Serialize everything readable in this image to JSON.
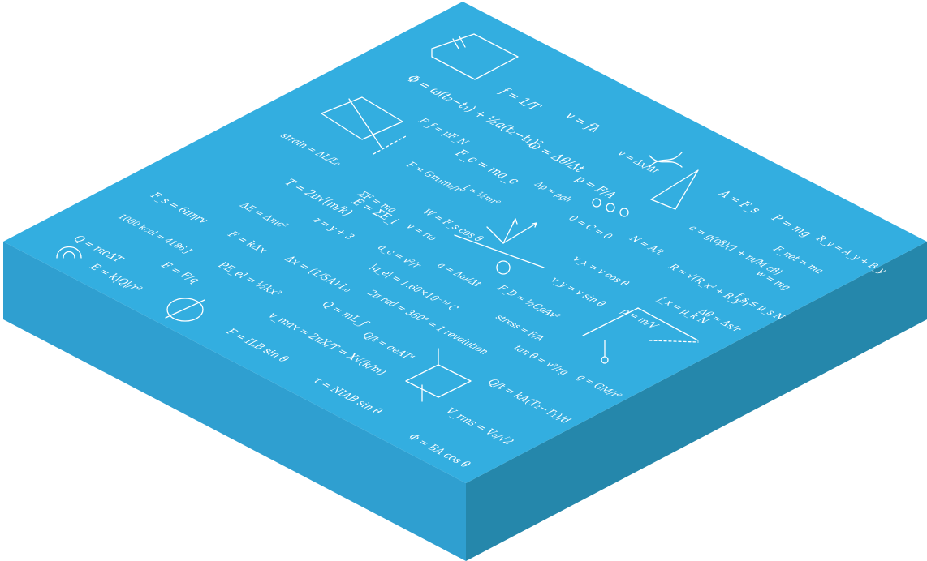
{
  "colors": {
    "top_face": "#33aee0",
    "left_face": "#2f9fd0",
    "right_face": "#2587ab",
    "chalk": "#ffffff"
  },
  "formulas": [
    "Φ = ω(t₂−t₁) + ½a(t₂−t₁)²",
    "f = 1/T",
    "v = fλ",
    "F_f = μF_N",
    "ω = Δθ/Δt",
    "v = Δx/Δt",
    "strain = ΔL/L₀",
    "F_c = ma_c",
    "p = F/A",
    "F = Gm₁m₂/r²",
    "I = ½mr²",
    "Δp = ρgh",
    "A = F_s",
    "P = mg",
    "R_y = A_y + B_y",
    "T = 2π√(m/k)",
    "ΣF = ma",
    "E = ΣE_i",
    "W = F_s cos θ",
    "a = g(cβ)(1 + m/M cβ)",
    "F_net = ma",
    "F_s = 6πηrv",
    "ΔE = Δmc²",
    "z = y + 3",
    "v = rω",
    "0 = C = 0",
    "N = A/t",
    "R = √(R_x² + R_y²)",
    "w = mg",
    "1000 kcal = 4186 J",
    "F = kΔx",
    "a_c = v²/r",
    "a = Δω/Δt",
    "v_x = v cos θ",
    "f_s ≤ μ_s N",
    "Q = mcΔT",
    "E = F/q",
    "PE_el = ½kx²",
    "Δx = (1/SA)·L₀",
    "|q_e| = 1.60×10⁻¹⁹ C",
    "F_D = ½CρAv²",
    "v_y = v sin θ",
    "ρ = m/V",
    "f_x = μ_k N",
    "Δθ = Δs/r",
    "E = k|Q|/r²",
    "Q = mL_f",
    "2π rad = 360° = 1 revolution",
    "stress = F/A",
    "tan θ = v²/rg",
    "v_max = 2πX/T = X√(k/m)",
    "Q/t = σeAT⁴",
    "g = GM/r²",
    "F = ILB sin θ",
    "Q/t = kA(T₂−T₁)/d",
    "V_rms = V₀/√2",
    "τ = NIAB sin θ",
    "Φ = BA cos θ"
  ]
}
